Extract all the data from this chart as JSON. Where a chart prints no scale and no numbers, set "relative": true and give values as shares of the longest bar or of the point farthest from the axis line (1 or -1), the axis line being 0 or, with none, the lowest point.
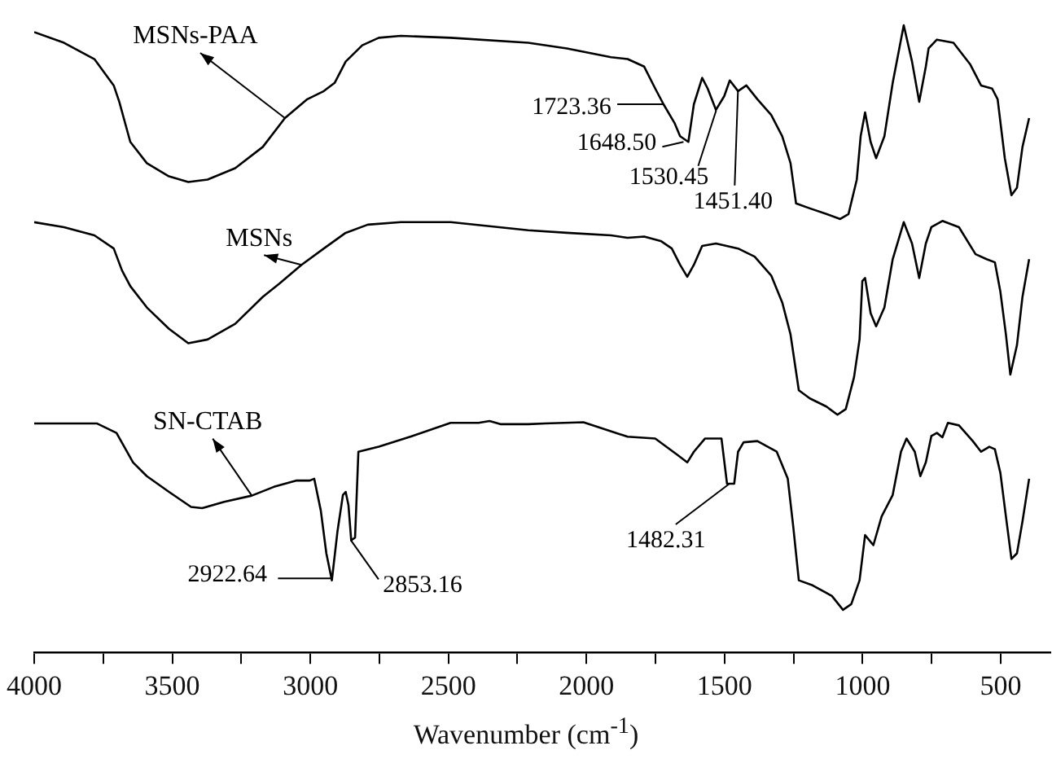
{
  "chart_data": {
    "type": "line",
    "relative": true,
    "xlabel": "Wavenumber (cm$^{-1}$)",
    "xlim": [
      4000,
      320
    ],
    "xticks": [
      4000,
      {
        "value": 3750,
        "label": null
      },
      3500,
      {
        "value": 3250,
        "label": null
      },
      3000,
      {
        "value": 2750,
        "label": null
      },
      2500,
      {
        "value": 2250,
        "label": null
      },
      2000,
      {
        "value": 1750,
        "label": null
      },
      1500,
      {
        "value": 1250,
        "label": null
      },
      1000,
      {
        "value": 750,
        "label": null
      },
      500
    ],
    "grid": false,
    "legend": false,
    "marker": "none",
    "line_style": "solid",
    "series": [
      {
        "name": "MSNs-PAA",
        "color": "#000000",
        "x": [
          4000,
          3892,
          3782,
          3712,
          3692,
          3652,
          3592,
          3512,
          3442,
          3372,
          3272,
          3172,
          3092,
          3011,
          2951,
          2912,
          2872,
          2812,
          2752,
          2672,
          2492,
          2211,
          2071,
          1911,
          1851,
          1791,
          1751,
          1721,
          1681,
          1661,
          1631,
          1611,
          1581,
          1561,
          1531,
          1501,
          1481,
          1451,
          1421,
          1381,
          1331,
          1291,
          1261,
          1241,
          1191,
          1131,
          1081,
          1051,
          1021,
          1007,
          991,
          971,
          951,
          921,
          891,
          851,
          821,
          795,
          771,
          761,
          731,
          671,
          611,
          571,
          531,
          511,
          485,
          461,
          441,
          421,
          397
        ],
        "values": [
          0.989,
          0.972,
          0.946,
          0.904,
          0.878,
          0.814,
          0.78,
          0.759,
          0.75,
          0.754,
          0.772,
          0.806,
          0.852,
          0.882,
          0.895,
          0.908,
          0.942,
          0.968,
          0.98,
          0.983,
          0.98,
          0.972,
          0.963,
          0.949,
          0.946,
          0.934,
          0.899,
          0.874,
          0.844,
          0.823,
          0.814,
          0.874,
          0.916,
          0.899,
          0.865,
          0.887,
          0.912,
          0.895,
          0.904,
          0.882,
          0.857,
          0.823,
          0.78,
          0.716,
          0.708,
          0.699,
          0.691,
          0.699,
          0.754,
          0.823,
          0.861,
          0.814,
          0.788,
          0.823,
          0.908,
          1.0,
          0.942,
          0.878,
          0.934,
          0.963,
          0.977,
          0.972,
          0.938,
          0.904,
          0.899,
          0.882,
          0.788,
          0.729,
          0.741,
          0.806,
          0.852
        ]
      },
      {
        "name": "MSNs",
        "color": "#000000",
        "x": [
          4000,
          3892,
          3782,
          3712,
          3682,
          3652,
          3592,
          3512,
          3442,
          3372,
          3272,
          3172,
          3112,
          3032,
          2951,
          2872,
          2792,
          2672,
          2492,
          2211,
          2071,
          1911,
          1851,
          1791,
          1731,
          1691,
          1661,
          1635,
          1611,
          1581,
          1531,
          1451,
          1391,
          1331,
          1291,
          1261,
          1231,
          1191,
          1131,
          1091,
          1061,
          1031,
          1011,
          1001,
          991,
          971,
          951,
          921,
          891,
          851,
          821,
          795,
          771,
          751,
          711,
          651,
          591,
          551,
          521,
          501,
          481,
          465,
          441,
          421,
          397
        ],
        "values": [
          0.686,
          0.678,
          0.665,
          0.644,
          0.609,
          0.584,
          0.55,
          0.516,
          0.493,
          0.499,
          0.524,
          0.567,
          0.588,
          0.618,
          0.644,
          0.669,
          0.682,
          0.686,
          0.686,
          0.673,
          0.669,
          0.665,
          0.661,
          0.663,
          0.656,
          0.644,
          0.618,
          0.599,
          0.618,
          0.648,
          0.652,
          0.644,
          0.631,
          0.601,
          0.558,
          0.507,
          0.418,
          0.405,
          0.392,
          0.379,
          0.388,
          0.439,
          0.499,
          0.592,
          0.597,
          0.541,
          0.52,
          0.55,
          0.627,
          0.686,
          0.652,
          0.597,
          0.652,
          0.678,
          0.688,
          0.678,
          0.635,
          0.627,
          0.622,
          0.575,
          0.507,
          0.443,
          0.49,
          0.567,
          0.627
        ]
      },
      {
        "name": "SN-CTAB",
        "color": "#000000",
        "x": [
          4000,
          3772,
          3702,
          3642,
          3592,
          3512,
          3432,
          3392,
          3312,
          3212,
          3132,
          3052,
          3002,
          2986,
          2962,
          2942,
          2922,
          2902,
          2882,
          2872,
          2862,
          2852,
          2838,
          2826,
          2752,
          2631,
          2492,
          2391,
          2351,
          2312,
          2211,
          2151,
          2011,
          1851,
          1751,
          1671,
          1635,
          1611,
          1571,
          1511,
          1491,
          1465,
          1451,
          1431,
          1381,
          1311,
          1271,
          1251,
          1231,
          1181,
          1111,
          1071,
          1041,
          1011,
          991,
          961,
          931,
          891,
          861,
          841,
          811,
          791,
          771,
          751,
          731,
          711,
          691,
          651,
          601,
          571,
          541,
          521,
          501,
          481,
          461,
          441,
          421,
          397
        ],
        "values": [
          0.365,
          0.365,
          0.35,
          0.303,
          0.281,
          0.256,
          0.232,
          0.23,
          0.24,
          0.25,
          0.264,
          0.274,
          0.274,
          0.277,
          0.226,
          0.158,
          0.115,
          0.192,
          0.251,
          0.256,
          0.235,
          0.179,
          0.183,
          0.32,
          0.328,
          0.345,
          0.366,
          0.366,
          0.369,
          0.364,
          0.364,
          0.365,
          0.367,
          0.344,
          0.341,
          0.315,
          0.303,
          0.32,
          0.341,
          0.341,
          0.269,
          0.269,
          0.32,
          0.335,
          0.337,
          0.32,
          0.277,
          0.2,
          0.115,
          0.107,
          0.09,
          0.068,
          0.077,
          0.115,
          0.187,
          0.171,
          0.217,
          0.251,
          0.32,
          0.341,
          0.32,
          0.281,
          0.303,
          0.345,
          0.35,
          0.343,
          0.366,
          0.362,
          0.337,
          0.32,
          0.328,
          0.324,
          0.286,
          0.217,
          0.149,
          0.158,
          0.209,
          0.277
        ]
      }
    ],
    "annotations": [
      {
        "text": "1723.36",
        "x": 1723.36,
        "y": 0.874
      },
      {
        "text": "1648.50",
        "x": 1648.5,
        "y": 0.814
      },
      {
        "text": "1530.45",
        "x": 1530.45,
        "y": 0.864
      },
      {
        "text": "1451.40",
        "x": 1451.4,
        "y": 0.895
      },
      {
        "text": "2922.64",
        "x": 2922.64,
        "y": 0.118
      },
      {
        "text": "2853.16",
        "x": 2853.16,
        "y": 0.179
      },
      {
        "text": "1482.31",
        "x": 1482.31,
        "y": 0.269
      }
    ]
  }
}
